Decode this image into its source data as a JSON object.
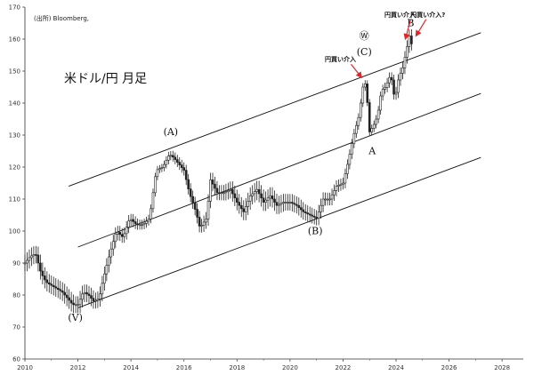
{
  "chart_data": {
    "type": "line",
    "title": "米ドル/円 月足",
    "source": "(出所) Bloomberg,",
    "xlabel": "",
    "ylabel": "",
    "xlim": [
      2010,
      2028.8
    ],
    "ylim": [
      60,
      170
    ],
    "x_ticks": [
      "2010",
      "2012",
      "2014",
      "2016",
      "2018",
      "2020",
      "2022",
      "2024",
      "2026",
      "2028"
    ],
    "y_ticks": [
      "60",
      "70",
      "80",
      "90",
      "100",
      "110",
      "120",
      "130",
      "140",
      "150",
      "160",
      "170"
    ],
    "grid": false,
    "series": [
      {
        "values": [
          [
            2010.0,
            90
          ],
          [
            2010.2,
            92
          ],
          [
            2010.4,
            93
          ],
          [
            2010.6,
            87
          ],
          [
            2010.8,
            84
          ],
          [
            2011.0,
            83
          ],
          [
            2011.2,
            82
          ],
          [
            2011.4,
            81
          ],
          [
            2011.6,
            79
          ],
          [
            2011.8,
            77
          ],
          [
            2012.0,
            77
          ],
          [
            2012.2,
            81
          ],
          [
            2012.4,
            80
          ],
          [
            2012.6,
            78
          ],
          [
            2012.8,
            79
          ],
          [
            2012.95,
            85
          ],
          [
            2013.2,
            93
          ],
          [
            2013.45,
            100
          ],
          [
            2013.7,
            98
          ],
          [
            2013.95,
            104
          ],
          [
            2014.2,
            102
          ],
          [
            2014.45,
            102
          ],
          [
            2014.7,
            104
          ],
          [
            2014.95,
            119
          ],
          [
            2015.2,
            120
          ],
          [
            2015.45,
            124
          ],
          [
            2015.6,
            123
          ],
          [
            2015.8,
            121
          ],
          [
            2016.0,
            119
          ],
          [
            2016.2,
            112
          ],
          [
            2016.45,
            106
          ],
          [
            2016.6,
            101
          ],
          [
            2016.85,
            104
          ],
          [
            2017.0,
            116
          ],
          [
            2017.25,
            112
          ],
          [
            2017.5,
            112
          ],
          [
            2017.75,
            113
          ],
          [
            2018.0,
            109
          ],
          [
            2018.25,
            106
          ],
          [
            2018.5,
            111
          ],
          [
            2018.75,
            113
          ],
          [
            2019.0,
            109
          ],
          [
            2019.25,
            111
          ],
          [
            2019.5,
            108
          ],
          [
            2019.75,
            109
          ],
          [
            2020.0,
            109
          ],
          [
            2020.25,
            108
          ],
          [
            2020.5,
            106
          ],
          [
            2020.75,
            105
          ],
          [
            2021.0,
            104
          ],
          [
            2021.25,
            110
          ],
          [
            2021.5,
            110
          ],
          [
            2021.75,
            114
          ],
          [
            2022.0,
            115
          ],
          [
            2022.2,
            122
          ],
          [
            2022.4,
            130
          ],
          [
            2022.6,
            136
          ],
          [
            2022.8,
            148
          ],
          [
            2022.9,
            142
          ],
          [
            2023.0,
            131
          ],
          [
            2023.15,
            133
          ],
          [
            2023.3,
            136
          ],
          [
            2023.45,
            144
          ],
          [
            2023.6,
            145
          ],
          [
            2023.8,
            149
          ],
          [
            2023.95,
            141
          ],
          [
            2024.1,
            148
          ],
          [
            2024.25,
            151
          ],
          [
            2024.4,
            157
          ],
          [
            2024.5,
            161
          ],
          [
            2024.6,
            158
          ]
        ]
      }
    ],
    "channel_lines": [
      {
        "x": [
          2011.65,
          2027.2
        ],
        "y": [
          114,
          162
        ]
      },
      {
        "x": [
          2012.0,
          2027.2
        ],
        "y": [
          95,
          143
        ]
      },
      {
        "x": [
          2012.0,
          2027.2
        ],
        "y": [
          76,
          123
        ]
      }
    ],
    "wave_labels": [
      {
        "text": "(V)",
        "x": 2011.9,
        "y": 72
      },
      {
        "text": "(A)",
        "x": 2015.5,
        "y": 130
      },
      {
        "text": "(B)",
        "x": 2020.95,
        "y": 99
      },
      {
        "text": "Ⓦ",
        "x": 2022.8,
        "y": 160
      },
      {
        "text": "(C)",
        "x": 2022.8,
        "y": 155
      },
      {
        "text": "A",
        "x": 2023.1,
        "y": 124
      },
      {
        "text": "B",
        "x": 2024.55,
        "y": 164
      }
    ],
    "annotations": [
      {
        "text": "円買い介入",
        "x": 2021.9,
        "y": 153,
        "arrow_x": 2022.7,
        "arrow_y": 148
      },
      {
        "text": "円買い介入",
        "x": 2024.15,
        "y": 167,
        "arrow_x": 2024.35,
        "arrow_y": 160
      },
      {
        "text": "円買い介入?",
        "x": 2025.2,
        "y": 167,
        "arrow_x": 2024.75,
        "arrow_y": 161
      }
    ]
  }
}
